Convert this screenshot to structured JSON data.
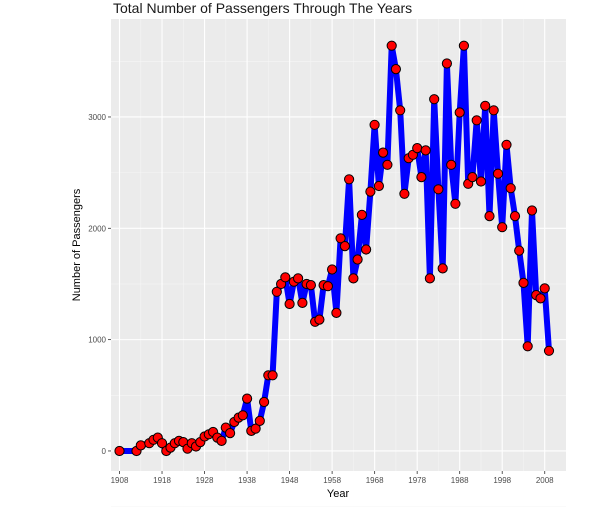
{
  "colors": {
    "panel_background": "#ebebeb",
    "major_grid": "#ffffff",
    "minor_grid": "#f5f5f5",
    "line": "#0000ff",
    "point_fill": "#ff0000",
    "point_stroke": "#000000"
  },
  "chart_data": {
    "type": "line",
    "title": "Total Number of Passengers Through The Years",
    "xlabel": "Year",
    "ylabel": "Number of Passengers",
    "xlim": [
      1906,
      2013
    ],
    "ylim": [
      -180,
      3880
    ],
    "x_ticks": [
      1908,
      1918,
      1928,
      1938,
      1948,
      1958,
      1968,
      1978,
      1988,
      1998,
      2008
    ],
    "y_ticks": [
      0,
      1000,
      2000,
      3000
    ],
    "grid": true,
    "legend": "none",
    "series": [
      {
        "x": [
          1908,
          1912,
          1913,
          1915,
          1916,
          1917,
          1918,
          1919,
          1920,
          1921,
          1922,
          1923,
          1924,
          1925,
          1926,
          1927,
          1928,
          1929,
          1930,
          1931,
          1932,
          1933,
          1934,
          1935,
          1936,
          1937,
          1938,
          1939,
          1940,
          1941,
          1942,
          1943,
          1944,
          1945,
          1946,
          1947,
          1948,
          1949,
          1950,
          1951,
          1952,
          1953,
          1954,
          1955,
          1956,
          1957,
          1958,
          1959,
          1960,
          1961,
          1962,
          1963,
          1964,
          1965,
          1966,
          1967,
          1968,
          1969,
          1970,
          1971,
          1972,
          1973,
          1974,
          1975,
          1976,
          1977,
          1978,
          1979,
          1980,
          1981,
          1982,
          1983,
          1984,
          1985,
          1986,
          1987,
          1988,
          1989,
          1990,
          1991,
          1992,
          1993,
          1994,
          1995,
          1996,
          1997,
          1998,
          1999,
          2000,
          2001,
          2002,
          2003,
          2004,
          2005,
          2006,
          2007,
          2008,
          2009
        ],
        "y": [
          0,
          0,
          50,
          70,
          100,
          120,
          70,
          0,
          30,
          70,
          90,
          80,
          20,
          70,
          40,
          80,
          130,
          150,
          170,
          120,
          90,
          210,
          160,
          260,
          300,
          320,
          470,
          180,
          200,
          270,
          440,
          680,
          680,
          1430,
          1500,
          1560,
          1320,
          1520,
          1550,
          1330,
          1500,
          1490,
          1160,
          1180,
          1490,
          1480,
          1630,
          1240,
          1910,
          1840,
          2440,
          1550,
          1720,
          2120,
          1810,
          2330,
          2930,
          2380,
          2680,
          2570,
          3640,
          3430,
          3060,
          2310,
          2630,
          2660,
          2720,
          2460,
          2700,
          1550,
          3160,
          2350,
          1640,
          3480,
          2570,
          2220,
          3040,
          3640,
          2400,
          2460,
          2970,
          2420,
          3100,
          2110,
          3060,
          2490,
          2010,
          2750,
          2360,
          2110,
          1800,
          1510,
          940,
          2160,
          1400,
          1370,
          1460,
          900
        ]
      }
    ]
  }
}
